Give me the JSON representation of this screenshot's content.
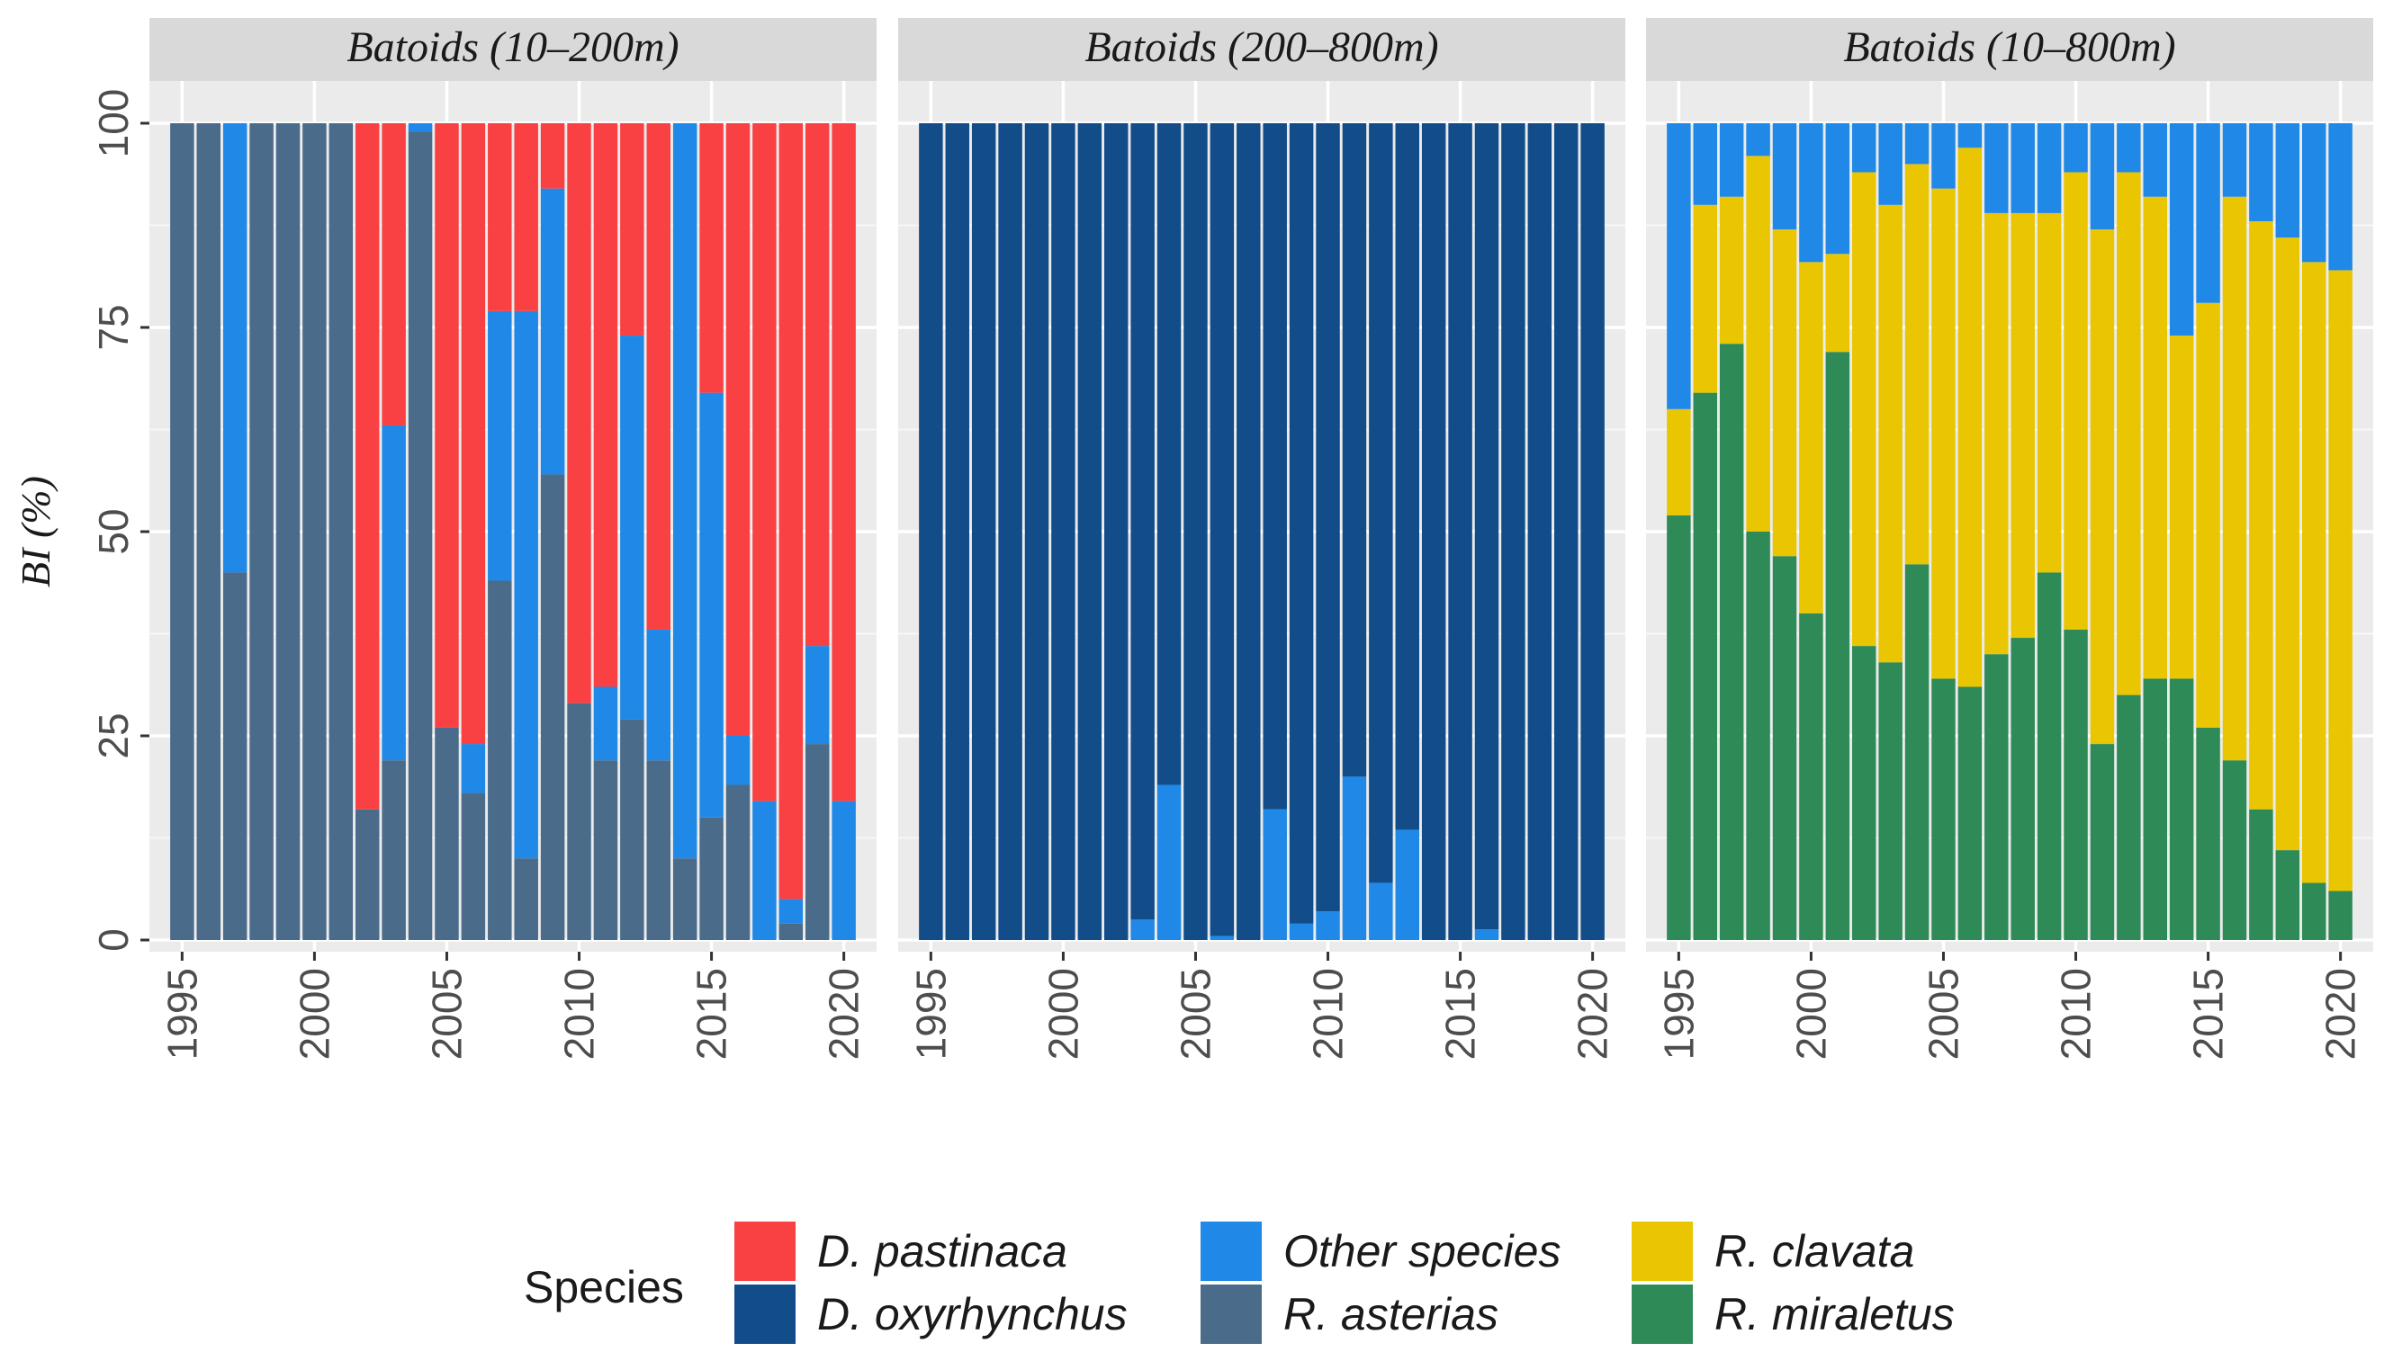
{
  "chart_data": {
    "type": "bar",
    "stacked": true,
    "ylabel": "BI (%)",
    "ylim": [
      0,
      100
    ],
    "yticks": [
      0,
      25,
      50,
      75,
      100
    ],
    "xticks": [
      1995,
      2000,
      2005,
      2010,
      2015,
      2020
    ],
    "x": [
      1995,
      1996,
      1997,
      1998,
      1999,
      2000,
      2001,
      2002,
      2003,
      2004,
      2005,
      2006,
      2007,
      2008,
      2009,
      2010,
      2011,
      2012,
      2013,
      2014,
      2015,
      2016,
      2017,
      2018,
      2019,
      2020
    ],
    "legend": {
      "title": "Species",
      "position": "bottom",
      "entries": [
        {
          "label": "D. pastinaca",
          "color": "#f94144"
        },
        {
          "label": "D. oxyrhynchus",
          "color": "#124d8a"
        },
        {
          "label": "Other species",
          "color": "#2088e6"
        },
        {
          "label": "R. asterias",
          "color": "#4a6b8a"
        },
        {
          "label": "R. clavata",
          "color": "#e9c601"
        },
        {
          "label": "R. miraletus",
          "color": "#2e8b57"
        }
      ]
    },
    "panels": [
      {
        "title": "Batoids (10–200m)",
        "stack_order": [
          "R. asterias",
          "Other species",
          "D. pastinaca"
        ],
        "series": [
          {
            "name": "R. asterias",
            "values": [
              100,
              100,
              45,
              100,
              100,
              100,
              100,
              16,
              22,
              99,
              26,
              18,
              44,
              10,
              57,
              29,
              22,
              27,
              22,
              10,
              15,
              19,
              0,
              2,
              24,
              0
            ]
          },
          {
            "name": "Other species",
            "values": [
              0,
              0,
              55,
              0,
              0,
              0,
              0,
              0,
              41,
              1,
              0,
              6,
              33,
              67,
              35,
              0,
              9,
              47,
              16,
              90,
              52,
              6,
              17,
              3,
              12,
              17
            ]
          },
          {
            "name": "D. pastinaca",
            "values": [
              0,
              0,
              0,
              0,
              0,
              0,
              0,
              84,
              37,
              0,
              74,
              76,
              23,
              23,
              8,
              71,
              69,
              26,
              62,
              0,
              33,
              75,
              83,
              95,
              64,
              83
            ]
          }
        ]
      },
      {
        "title": "Batoids (200–800m)",
        "stack_order": [
          "Other species",
          "D. oxyrhynchus"
        ],
        "series": [
          {
            "name": "Other species",
            "values": [
              0,
              0,
              0,
              0,
              0,
              0,
              0,
              0,
              2.5,
              19,
              0,
              0.5,
              0,
              16,
              2,
              3.5,
              20,
              7,
              13.5,
              0,
              0,
              1.3,
              0,
              0,
              0,
              0
            ]
          },
          {
            "name": "D. oxyrhynchus",
            "values": [
              100,
              100,
              100,
              100,
              100,
              100,
              100,
              100,
              97.5,
              81,
              100,
              99.5,
              100,
              84,
              98,
              96.5,
              80,
              93,
              86.5,
              100,
              100,
              98.7,
              100,
              100,
              100,
              100
            ]
          }
        ]
      },
      {
        "title": "Batoids (10–800m)",
        "stack_order": [
          "R. miraletus",
          "R. clavata",
          "Other species"
        ],
        "series": [
          {
            "name": "R. miraletus",
            "values": [
              52,
              67,
              73,
              50,
              47,
              40,
              72,
              36,
              34,
              46,
              32,
              31,
              35,
              37,
              45,
              38,
              24,
              30,
              32,
              32,
              26,
              22,
              16,
              11,
              7,
              6
            ]
          },
          {
            "name": "R. clavata",
            "values": [
              13,
              23,
              18,
              46,
              40,
              43,
              12,
              58,
              56,
              49,
              60,
              66,
              54,
              52,
              44,
              56,
              63,
              64,
              59,
              42,
              52,
              69,
              72,
              75,
              76,
              76
            ]
          },
          {
            "name": "Other species",
            "values": [
              35,
              10,
              9,
              4,
              13,
              17,
              16,
              6,
              10,
              5,
              8,
              3,
              11,
              11,
              11,
              6,
              13,
              6,
              9,
              26,
              22,
              9,
              12,
              14,
              17,
              18
            ]
          }
        ]
      }
    ]
  }
}
